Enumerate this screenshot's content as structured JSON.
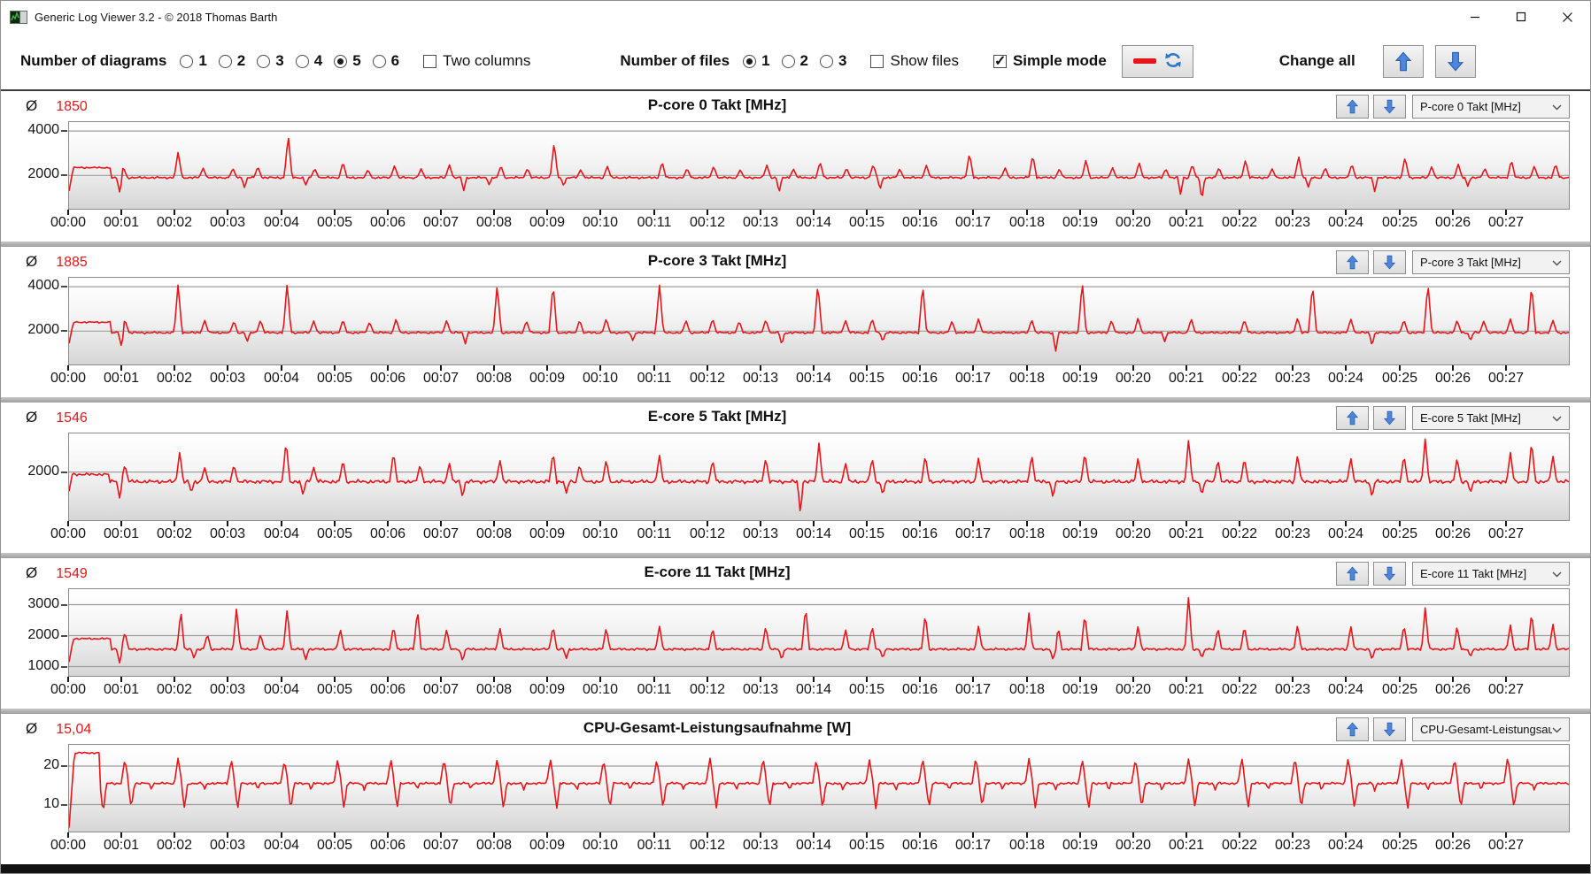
{
  "window": {
    "title": "Generic Log Viewer 3.2 - © 2018 Thomas Barth"
  },
  "toolbar": {
    "diagrams_label": "Number of diagrams",
    "diagram_options": [
      "1",
      "2",
      "3",
      "4",
      "5",
      "6"
    ],
    "diagrams_selected": "5",
    "two_columns_label": "Two columns",
    "two_columns_checked": false,
    "files_label": "Number of files",
    "file_options": [
      "1",
      "2",
      "3"
    ],
    "files_selected": "1",
    "show_files_label": "Show files",
    "show_files_checked": false,
    "simple_mode_label": "Simple mode",
    "simple_mode_checked": true,
    "change_all_label": "Change all"
  },
  "colors": {
    "line": "#e8151a",
    "average_value": "#e8151a",
    "grid": "#9e9e9e",
    "arrow_blue": "#4f86dd",
    "sync_blue": "#2e79c7"
  },
  "avg_symbol": "Ø",
  "chart_data": {
    "type": "line",
    "x_range_minutes": [
      0,
      28.2
    ],
    "x_ticks": [
      "00:00",
      "00:01",
      "00:02",
      "00:03",
      "00:04",
      "00:05",
      "00:06",
      "00:07",
      "00:08",
      "00:09",
      "00:10",
      "00:11",
      "00:12",
      "00:13",
      "00:14",
      "00:15",
      "00:16",
      "00:17",
      "00:18",
      "00:19",
      "00:20",
      "00:21",
      "00:22",
      "00:23",
      "00:24",
      "00:25",
      "00:26",
      "00:27"
    ],
    "charts": [
      {
        "title": "P-core 0 Takt [MHz]",
        "dropdown": "P-core 0 Takt [MHz]",
        "avg": "1850",
        "ylim": [
          500,
          4400
        ],
        "y_ticks": [
          2000,
          4000
        ],
        "baseline": 1900,
        "noise": 55,
        "spike_w": 0.075,
        "dip_w": 0.055,
        "start": {
          "v0": 1300,
          "t_ramp": 0.08,
          "plateau": 2350,
          "t_end": 0.78
        },
        "spikes": [
          [
            1.02,
            2380
          ],
          [
            2.05,
            3060
          ],
          [
            2.52,
            2340
          ],
          [
            3.08,
            2320
          ],
          [
            3.55,
            2400
          ],
          [
            4.12,
            3820
          ],
          [
            4.62,
            2320
          ],
          [
            5.15,
            2620
          ],
          [
            5.62,
            2260
          ],
          [
            6.12,
            2460
          ],
          [
            6.62,
            2300
          ],
          [
            7.15,
            2500
          ],
          [
            8.12,
            2450
          ],
          [
            8.62,
            2320
          ],
          [
            9.12,
            3480
          ],
          [
            9.62,
            2260
          ],
          [
            10.12,
            2420
          ],
          [
            11.15,
            2620
          ],
          [
            11.62,
            2320
          ],
          [
            12.12,
            2420
          ],
          [
            12.62,
            2260
          ],
          [
            13.12,
            2460
          ],
          [
            13.62,
            2300
          ],
          [
            14.12,
            2620
          ],
          [
            14.62,
            2340
          ],
          [
            15.12,
            2500
          ],
          [
            15.62,
            2300
          ],
          [
            16.12,
            2460
          ],
          [
            16.93,
            3010
          ],
          [
            17.6,
            2350
          ],
          [
            18.12,
            2920
          ],
          [
            18.62,
            2300
          ],
          [
            19.12,
            2700
          ],
          [
            19.62,
            2350
          ],
          [
            20.12,
            2600
          ],
          [
            20.62,
            2300
          ],
          [
            21.12,
            2500
          ],
          [
            21.62,
            2350
          ],
          [
            22.12,
            2700
          ],
          [
            22.62,
            2300
          ],
          [
            23.12,
            2870
          ],
          [
            23.62,
            2350
          ],
          [
            24.12,
            2520
          ],
          [
            25.12,
            2820
          ],
          [
            25.62,
            2400
          ],
          [
            26.12,
            2520
          ],
          [
            26.62,
            2320
          ],
          [
            27.12,
            2700
          ],
          [
            27.55,
            2420
          ],
          [
            27.95,
            2520
          ]
        ],
        "dips": [
          [
            0.95,
            1260
          ],
          [
            3.3,
            1420
          ],
          [
            4.45,
            1560
          ],
          [
            7.42,
            1310
          ],
          [
            7.9,
            1560
          ],
          [
            9.3,
            1510
          ],
          [
            13.35,
            1210
          ],
          [
            15.25,
            1360
          ],
          [
            20.9,
            1120
          ],
          [
            21.3,
            860
          ],
          [
            23.3,
            1460
          ],
          [
            24.55,
            1260
          ],
          [
            26.3,
            1510
          ]
        ]
      },
      {
        "title": "P-core 3 Takt [MHz]",
        "dropdown": "P-core 3 Takt [MHz]",
        "avg": "1885",
        "ylim": [
          500,
          4400
        ],
        "y_ticks": [
          2000,
          4000
        ],
        "baseline": 1930,
        "noise": 55,
        "spike_w": 0.075,
        "dip_w": 0.055,
        "start": {
          "v0": 1450,
          "t_ramp": 0.08,
          "plateau": 2400,
          "t_end": 0.78
        },
        "spikes": [
          [
            1.05,
            2520
          ],
          [
            2.05,
            4120
          ],
          [
            2.55,
            2500
          ],
          [
            3.1,
            2460
          ],
          [
            3.6,
            2500
          ],
          [
            4.1,
            4160
          ],
          [
            4.6,
            2460
          ],
          [
            5.15,
            2520
          ],
          [
            5.65,
            2420
          ],
          [
            6.15,
            2560
          ],
          [
            7.1,
            2500
          ],
          [
            8.05,
            4100
          ],
          [
            8.6,
            2460
          ],
          [
            9.1,
            4150
          ],
          [
            9.6,
            2500
          ],
          [
            10.1,
            2560
          ],
          [
            11.1,
            4120
          ],
          [
            11.6,
            2500
          ],
          [
            12.1,
            2560
          ],
          [
            12.6,
            2460
          ],
          [
            13.1,
            2520
          ],
          [
            14.08,
            4160
          ],
          [
            14.6,
            2500
          ],
          [
            15.1,
            2560
          ],
          [
            16.05,
            4100
          ],
          [
            16.6,
            2460
          ],
          [
            17.1,
            2560
          ],
          [
            18.1,
            2520
          ],
          [
            19.05,
            4260
          ],
          [
            19.6,
            2500
          ],
          [
            20.1,
            2600
          ],
          [
            21.1,
            2560
          ],
          [
            22.1,
            2520
          ],
          [
            23.1,
            2600
          ],
          [
            23.38,
            4120
          ],
          [
            24.1,
            2560
          ],
          [
            25.1,
            2520
          ],
          [
            25.55,
            4160
          ],
          [
            26.1,
            2500
          ],
          [
            26.6,
            2460
          ],
          [
            27.1,
            2560
          ],
          [
            27.5,
            4100
          ],
          [
            27.9,
            2500
          ]
        ],
        "dips": [
          [
            0.98,
            1360
          ],
          [
            3.35,
            1520
          ],
          [
            7.45,
            1420
          ],
          [
            10.6,
            1560
          ],
          [
            13.4,
            1360
          ],
          [
            15.3,
            1520
          ],
          [
            18.55,
            1060
          ],
          [
            20.6,
            1520
          ],
          [
            24.5,
            1320
          ],
          [
            26.35,
            1560
          ]
        ]
      },
      {
        "title": "E-core 5 Takt [MHz]",
        "dropdown": "E-core 5 Takt [MHz]",
        "avg": "1546",
        "ylim": [
          1000,
          2800
        ],
        "y_ticks": [
          2000
        ],
        "baseline": 1800,
        "noise": 45,
        "spike_w": 0.07,
        "dip_w": 0.055,
        "start": {
          "v0": 1600,
          "t_ramp": 0.06,
          "plateau": 1950,
          "t_end": 0.75
        },
        "spikes": [
          [
            1.05,
            2160
          ],
          [
            2.08,
            2420
          ],
          [
            2.55,
            2100
          ],
          [
            3.1,
            2160
          ],
          [
            4.08,
            2660
          ],
          [
            4.6,
            2100
          ],
          [
            5.15,
            2260
          ],
          [
            6.1,
            2420
          ],
          [
            6.6,
            2160
          ],
          [
            7.15,
            2200
          ],
          [
            8.1,
            2260
          ],
          [
            9.1,
            2420
          ],
          [
            9.6,
            2160
          ],
          [
            10.1,
            2260
          ],
          [
            11.1,
            2360
          ],
          [
            12.1,
            2260
          ],
          [
            13.1,
            2300
          ],
          [
            14.1,
            2600
          ],
          [
            14.6,
            2200
          ],
          [
            15.1,
            2300
          ],
          [
            16.1,
            2360
          ],
          [
            17.1,
            2300
          ],
          [
            18.1,
            2360
          ],
          [
            19.1,
            2420
          ],
          [
            20.1,
            2300
          ],
          [
            21.05,
            2700
          ],
          [
            21.6,
            2260
          ],
          [
            22.1,
            2300
          ],
          [
            23.1,
            2360
          ],
          [
            24.1,
            2300
          ],
          [
            25.1,
            2360
          ],
          [
            25.5,
            2700
          ],
          [
            26.1,
            2300
          ],
          [
            27.1,
            2420
          ],
          [
            27.5,
            2660
          ],
          [
            27.9,
            2350
          ]
        ],
        "dips": [
          [
            0.95,
            1460
          ],
          [
            2.3,
            1560
          ],
          [
            4.4,
            1510
          ],
          [
            7.4,
            1460
          ],
          [
            9.35,
            1560
          ],
          [
            13.75,
            1120
          ],
          [
            15.3,
            1510
          ],
          [
            18.5,
            1460
          ],
          [
            21.3,
            1510
          ],
          [
            24.5,
            1460
          ],
          [
            26.35,
            1560
          ]
        ]
      },
      {
        "title": "E-core 11 Takt [MHz]",
        "dropdown": "E-core 11 Takt [MHz]",
        "avg": "1549",
        "ylim": [
          700,
          3500
        ],
        "y_ticks": [
          1000,
          2000,
          3000
        ],
        "baseline": 1560,
        "noise": 45,
        "spike_w": 0.07,
        "dip_w": 0.055,
        "start": {
          "v0": 1150,
          "t_ramp": 0.08,
          "plateau": 1900,
          "t_end": 0.8
        },
        "spikes": [
          [
            1.05,
            2120
          ],
          [
            2.1,
            2820
          ],
          [
            2.6,
            2060
          ],
          [
            3.15,
            2920
          ],
          [
            3.6,
            2060
          ],
          [
            4.1,
            2860
          ],
          [
            5.1,
            2220
          ],
          [
            6.1,
            2320
          ],
          [
            6.55,
            2860
          ],
          [
            7.1,
            2220
          ],
          [
            8.1,
            2260
          ],
          [
            9.1,
            2320
          ],
          [
            10.1,
            2260
          ],
          [
            11.1,
            2320
          ],
          [
            12.1,
            2260
          ],
          [
            13.1,
            2320
          ],
          [
            13.85,
            2960
          ],
          [
            14.6,
            2220
          ],
          [
            15.1,
            2320
          ],
          [
            16.1,
            2720
          ],
          [
            17.1,
            2320
          ],
          [
            18.05,
            2760
          ],
          [
            18.6,
            2260
          ],
          [
            19.1,
            2720
          ],
          [
            20.1,
            2320
          ],
          [
            21.05,
            3320
          ],
          [
            21.6,
            2260
          ],
          [
            22.1,
            2320
          ],
          [
            23.1,
            2360
          ],
          [
            24.1,
            2320
          ],
          [
            25.1,
            2360
          ],
          [
            25.5,
            2920
          ],
          [
            26.1,
            2320
          ],
          [
            27.1,
            2360
          ],
          [
            27.5,
            2780
          ],
          [
            27.9,
            2400
          ]
        ],
        "dips": [
          [
            0.95,
            1120
          ],
          [
            2.35,
            1260
          ],
          [
            4.45,
            1210
          ],
          [
            7.4,
            1160
          ],
          [
            9.35,
            1260
          ],
          [
            13.4,
            1210
          ],
          [
            15.3,
            1260
          ],
          [
            18.5,
            1210
          ],
          [
            21.3,
            1260
          ],
          [
            24.5,
            1210
          ],
          [
            26.35,
            1310
          ]
        ]
      },
      {
        "title": "CPU-Gesamt-Leistungsaufnahme [W]",
        "dropdown": "CPU-Gesamt-Leistungsau",
        "avg": "15,04",
        "ylim": [
          3,
          25.5
        ],
        "y_ticks": [
          10,
          20
        ],
        "baseline": 15.5,
        "noise": 0.35,
        "spike_w": 0.07,
        "dip_w": 0.06,
        "start": {
          "v0": 4,
          "t_ramp": 0.1,
          "plateau": 23.4,
          "t_end": 0.6
        },
        "spikes": [],
        "dips": [
          [
            0.64,
            7.5
          ]
        ],
        "cycles": [
          {
            "start": 1,
            "end": 27.95,
            "period": 1.0,
            "offset": 0.05,
            "value": 22.0,
            "kind": "spike",
            "width": 0.07,
            "jitter": 0.6
          },
          {
            "start": 1,
            "end": 27.95,
            "period": 1.0,
            "offset": 0.17,
            "value": 8.8,
            "kind": "dip",
            "width": 0.06,
            "jitter": 0.5
          },
          {
            "start": 1,
            "end": 27.95,
            "period": 1.0,
            "offset": 0.55,
            "value": 13.7,
            "kind": "dip",
            "width": 0.04,
            "jitter": 0.3
          }
        ]
      }
    ]
  }
}
